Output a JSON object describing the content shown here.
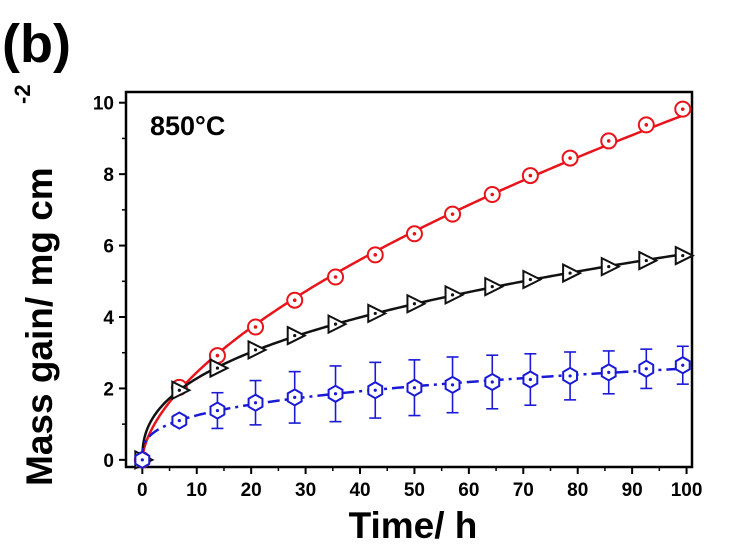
{
  "panel_label": "(b)",
  "chart_data": {
    "type": "line",
    "annotation": "850°C",
    "xlabel": "Time/ h",
    "ylabel": "Mass gain/ mg cm",
    "ylabel_superscript": "-2",
    "xlim": [
      -3,
      101
    ],
    "ylim": [
      -0.2,
      10.3
    ],
    "xticks": [
      0,
      10,
      20,
      30,
      40,
      50,
      60,
      70,
      80,
      90,
      100
    ],
    "yticks": [
      0,
      2,
      4,
      6,
      8,
      10
    ],
    "grid": false,
    "legend": "none",
    "series": [
      {
        "color": "#e8141b",
        "line_style": "solid",
        "marker": "circle-dot",
        "x": [
          0,
          6.8,
          13.8,
          20.8,
          28.0,
          35.5,
          42.8,
          50.0,
          57.0,
          64.3,
          71.3,
          78.6,
          85.7,
          92.6,
          99.3
        ],
        "y": [
          0,
          2.03,
          2.92,
          3.72,
          4.47,
          5.12,
          5.74,
          6.33,
          6.88,
          7.43,
          7.96,
          8.45,
          8.93,
          9.38,
          9.82
        ]
      },
      {
        "color": "#111111",
        "line_style": "solid",
        "marker": "triangle-right",
        "x": [
          0,
          6.8,
          13.8,
          20.8,
          28.0,
          35.5,
          42.8,
          50.0,
          57.0,
          64.3,
          71.3,
          78.6,
          85.7,
          92.6,
          99.3
        ],
        "y": [
          0,
          1.95,
          2.57,
          3.08,
          3.48,
          3.8,
          4.1,
          4.37,
          4.62,
          4.85,
          5.05,
          5.23,
          5.41,
          5.58,
          5.72
        ]
      },
      {
        "color": "#1a1ad6",
        "line_style": "dash-dot",
        "marker": "hexagon-dot",
        "x": [
          0,
          6.8,
          13.8,
          20.8,
          28.0,
          35.5,
          42.8,
          50.0,
          57.0,
          64.3,
          71.3,
          78.6,
          85.7,
          92.6,
          99.3
        ],
        "y": [
          0,
          1.1,
          1.38,
          1.6,
          1.75,
          1.85,
          1.95,
          2.02,
          2.1,
          2.18,
          2.25,
          2.35,
          2.45,
          2.55,
          2.65
        ],
        "error": [
          0,
          0.15,
          0.5,
          0.62,
          0.72,
          0.78,
          0.78,
          0.78,
          0.78,
          0.75,
          0.72,
          0.67,
          0.6,
          0.55,
          0.53
        ]
      }
    ]
  }
}
